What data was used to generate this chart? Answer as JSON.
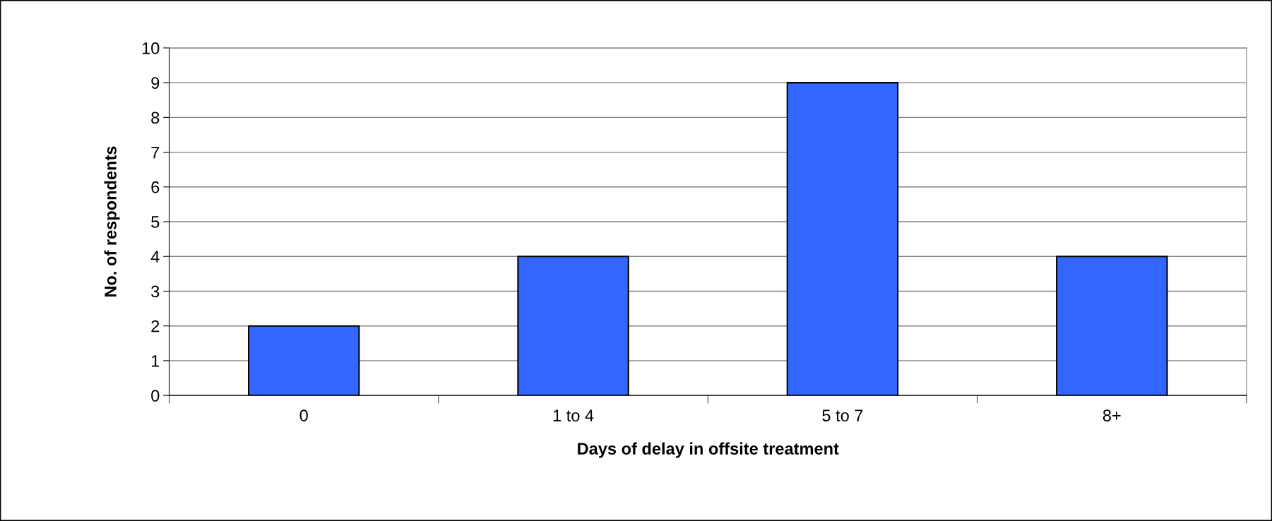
{
  "chart_data": {
    "type": "bar",
    "xlabel": "Days of delay in offsite treatment",
    "ylabel": "No. of respondents",
    "categories": [
      "0",
      "1 to 4",
      "5 to 7",
      "8+"
    ],
    "values": [
      2,
      4,
      9,
      4
    ],
    "color": "#3366ff",
    "ylim": [
      0,
      10
    ],
    "yticks": [
      0,
      1,
      2,
      3,
      4,
      5,
      6,
      7,
      8,
      9,
      10
    ],
    "grid": "y",
    "legend": false
  }
}
